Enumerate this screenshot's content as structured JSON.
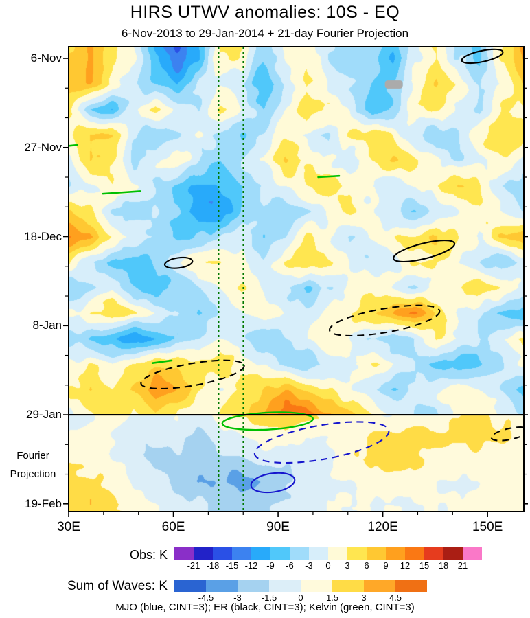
{
  "title": "HIRS UTWV anomalies: 10S - EQ",
  "subtitle": "6-Nov-2013 to 29-Jan-2014 + 21-day Fourier Projection",
  "caption": "MJO (blue, CINT=3); ER (black, CINT=3); Kelvin (green, CINT=3)",
  "y_axis": {
    "side_label_line1": "Fourier",
    "side_label_line2": "Projection",
    "ticks": [
      {
        "label": "6-Nov",
        "day": 0
      },
      {
        "label": "27-Nov",
        "day": 21
      },
      {
        "label": "18-Dec",
        "day": 42
      },
      {
        "label": "8-Jan",
        "day": 63
      },
      {
        "label": "29-Jan",
        "day": 84
      },
      {
        "label": "19-Feb",
        "day": 105
      }
    ]
  },
  "x_axis": {
    "ticks": [
      {
        "label": "30E",
        "lon": 30
      },
      {
        "label": "60E",
        "lon": 60
      },
      {
        "label": "90E",
        "lon": 90
      },
      {
        "label": "120E",
        "lon": 120
      },
      {
        "label": "150E",
        "lon": 150
      }
    ]
  },
  "colorbars": {
    "obs": {
      "label": "Obs: K",
      "tick_labels": [
        "-21",
        "-18",
        "-15",
        "-12",
        "-9",
        "-6",
        "-3",
        "0",
        "3",
        "6",
        "9",
        "12",
        "15",
        "18",
        "21"
      ],
      "colors": [
        "#8A2FC8",
        "#2222C8",
        "#2A50E6",
        "#3C82F0",
        "#28AAFA",
        "#50C8FA",
        "#A0DCFA",
        "#D7EEFA",
        "#FFFAD7",
        "#FFE650",
        "#FFC832",
        "#FFA01E",
        "#FA7814",
        "#E63C1E",
        "#AA1E14",
        "#FA78C8"
      ]
    },
    "sum": {
      "label": "Sum of Waves: K",
      "tick_labels": [
        "-4.5",
        "-3",
        "-1.5",
        "0",
        "1.5",
        "3",
        "4.5"
      ],
      "colors": [
        "#2A64D2",
        "#5AA0E6",
        "#A5D2F0",
        "#DCEEF8",
        "#FFFADC",
        "#FFDC46",
        "#FFA828",
        "#F07014"
      ]
    }
  },
  "chart_data": {
    "type": "heatmap",
    "units": "K",
    "x_range_deg_east": [
      30,
      160
    ],
    "time_start": "6-Nov-2013",
    "time_end": "19-Feb-2014",
    "total_days": 105,
    "projection_start_day": 84,
    "obs_contour_interval": 3,
    "proj_contour_interval": 1.5,
    "kelvin_reference_lons": [
      73,
      80
    ],
    "wave_colors": {
      "MJO": "#1515CD",
      "ER": "#000000",
      "Kelvin": "#00C000",
      "kelvin_line": "#007800"
    },
    "obs_grid": {
      "lon_start": 30,
      "lon_step": 6.1905,
      "day_start": 0,
      "day_step": 6,
      "values": [
        [
          6,
          9,
          3,
          0,
          -9,
          -15,
          -9,
          3,
          3,
          -6,
          0,
          3,
          -3,
          -6,
          -3,
          -9,
          0,
          3,
          -3,
          -6,
          3,
          9
        ],
        [
          9,
          9,
          3,
          -3,
          -6,
          -9,
          -3,
          0,
          -3,
          -9,
          -3,
          3,
          0,
          -3,
          -6,
          -6,
          0,
          6,
          3,
          -3,
          0,
          6
        ],
        [
          3,
          -6,
          -9,
          0,
          3,
          0,
          -3,
          3,
          0,
          -6,
          0,
          6,
          3,
          0,
          -9,
          -6,
          3,
          3,
          0,
          -3,
          3,
          3
        ],
        [
          3,
          6,
          6,
          -3,
          -6,
          -3,
          0,
          -3,
          -6,
          -3,
          3,
          0,
          -3,
          3,
          6,
          3,
          -3,
          -6,
          -3,
          3,
          6,
          3
        ],
        [
          0,
          6,
          3,
          -3,
          0,
          3,
          -3,
          -6,
          -3,
          0,
          6,
          3,
          0,
          -3,
          3,
          6,
          3,
          0,
          -3,
          0,
          3,
          0
        ],
        [
          -3,
          0,
          3,
          0,
          -3,
          -6,
          -9,
          -9,
          -6,
          -3,
          0,
          3,
          6,
          3,
          0,
          -3,
          0,
          3,
          6,
          3,
          -3,
          -6
        ],
        [
          6,
          3,
          -3,
          -6,
          -3,
          -6,
          -12,
          -12,
          -6,
          -3,
          -6,
          -3,
          0,
          3,
          0,
          -3,
          -6,
          -3,
          0,
          3,
          0,
          -3
        ],
        [
          12,
          9,
          3,
          0,
          -3,
          -6,
          -6,
          -3,
          0,
          -6,
          -3,
          3,
          0,
          -3,
          0,
          3,
          3,
          6,
          3,
          0,
          6,
          9
        ],
        [
          3,
          -3,
          -6,
          -9,
          -6,
          0,
          3,
          3,
          0,
          -3,
          3,
          6,
          3,
          0,
          -3,
          0,
          3,
          3,
          0,
          -3,
          -6,
          -3
        ],
        [
          -6,
          -3,
          0,
          -6,
          -9,
          -6,
          -3,
          0,
          3,
          0,
          -3,
          -6,
          -3,
          0,
          3,
          0,
          -3,
          0,
          3,
          6,
          3,
          0
        ],
        [
          0,
          3,
          6,
          3,
          0,
          -3,
          -6,
          -3,
          0,
          3,
          0,
          -3,
          0,
          3,
          6,
          9,
          12,
          6,
          0,
          -3,
          -6,
          -9
        ],
        [
          -3,
          -6,
          -9,
          -12,
          -9,
          -6,
          -3,
          0,
          -3,
          -6,
          -3,
          0,
          3,
          0,
          -3,
          -6,
          -3,
          3,
          0,
          -3,
          0,
          3
        ],
        [
          0,
          3,
          0,
          3,
          6,
          6,
          3,
          6,
          3,
          0,
          -3,
          -6,
          -3,
          0,
          3,
          0,
          -3,
          -6,
          -9,
          -6,
          -3,
          0
        ],
        [
          3,
          6,
          3,
          6,
          12,
          9,
          3,
          0,
          3,
          6,
          9,
          6,
          3,
          0,
          -3,
          -6,
          -3,
          0,
          3,
          0,
          -3,
          -6
        ],
        [
          0,
          3,
          6,
          3,
          6,
          3,
          0,
          3,
          6,
          9,
          15,
          15,
          9,
          6,
          3,
          0,
          -3,
          -3,
          0,
          3,
          0,
          -3
        ]
      ]
    },
    "proj_grid": {
      "lon_start": 30,
      "lon_step": 6.1905,
      "day_start": 84,
      "day_step": 5.25,
      "values": [
        [
          -1,
          0,
          1,
          0,
          0,
          0,
          -1,
          1,
          2,
          2,
          3,
          2,
          1,
          1,
          0,
          0,
          1,
          1,
          1,
          2,
          1,
          1
        ],
        [
          0,
          1,
          0,
          -1,
          -1,
          -1,
          -2,
          -1,
          0,
          1,
          1,
          0,
          0,
          1,
          2,
          2,
          2,
          2,
          2,
          2,
          2,
          1
        ],
        [
          1,
          1,
          0,
          -1,
          -2,
          -2,
          -2,
          -2,
          -2,
          -1,
          -1,
          -1,
          0,
          1,
          2,
          2,
          2,
          1,
          1,
          1,
          1,
          1
        ],
        [
          2,
          2,
          1,
          0,
          -1,
          -2,
          -3,
          -3,
          -4,
          -3,
          -2,
          -1,
          0,
          0,
          1,
          1,
          1,
          0,
          0,
          0,
          1,
          1
        ],
        [
          2,
          3,
          2,
          1,
          0,
          -1,
          -1,
          -2,
          -2,
          -2,
          -1,
          -1,
          0,
          0,
          0,
          0,
          0,
          0,
          0,
          1,
          1,
          1
        ]
      ]
    },
    "overlays": {
      "projection_divider_day": 84,
      "kelvin_dashed_vlines_lon": [
        73,
        80
      ],
      "ellipses": [
        {
          "wave": "ER",
          "dash": false,
          "lon": 61.5,
          "day": 48.2,
          "rx_deg": 4.0,
          "ry_day": 1.2,
          "rot": -8
        },
        {
          "wave": "ER",
          "dash": false,
          "lon": 131.8,
          "day": 45.4,
          "rx_deg": 9.0,
          "ry_day": 1.8,
          "rot": -14
        },
        {
          "wave": "ER",
          "dash": true,
          "lon": 120.5,
          "day": 61.8,
          "rx_deg": 16.0,
          "ry_day": 2.8,
          "rot": -10
        },
        {
          "wave": "ER",
          "dash": true,
          "lon": 65.5,
          "day": 74.5,
          "rx_deg": 15.0,
          "ry_day": 2.6,
          "rot": -10
        },
        {
          "wave": "MJO",
          "dash": true,
          "lon": 102.5,
          "day": 90.5,
          "rx_deg": 19.5,
          "ry_day": 4.0,
          "rot": -10
        },
        {
          "wave": "MJO",
          "dash": false,
          "lon": 88.5,
          "day": 100.0,
          "rx_deg": 6.3,
          "ry_day": 2.2,
          "rot": -8
        },
        {
          "wave": "Kelvin",
          "dash": false,
          "lon": 87.0,
          "day": 85.5,
          "rx_deg": 13.0,
          "ry_day": 2.0,
          "rot": -3
        },
        {
          "wave": "ER",
          "dash": false,
          "lon": 148.5,
          "day": -0.5,
          "rx_deg": 6.0,
          "ry_day": 1.3,
          "rot": -12
        },
        {
          "wave": "ER",
          "dash": true,
          "lon": 156.5,
          "day": 88.5,
          "rx_deg": 5.5,
          "ry_day": 1.3,
          "rot": -12
        }
      ],
      "kelvin_segments": [
        {
          "lon1": 30.0,
          "day1": 20.6,
          "lon2": 32.5,
          "day2": 20.4
        },
        {
          "lon1": 39.8,
          "day1": 31.9,
          "lon2": 50.5,
          "day2": 31.3
        },
        {
          "lon1": 101.5,
          "day1": 28.0,
          "lon2": 107.5,
          "day2": 27.7
        },
        {
          "lon1": 54.0,
          "day1": 71.8,
          "lon2": 59.5,
          "day2": 71.2
        }
      ],
      "missing_data_patch": {
        "lon": 120.6,
        "day": 5.2,
        "w_deg": 5.1,
        "h_day": 1.9,
        "color": "#ABABAB"
      }
    }
  }
}
